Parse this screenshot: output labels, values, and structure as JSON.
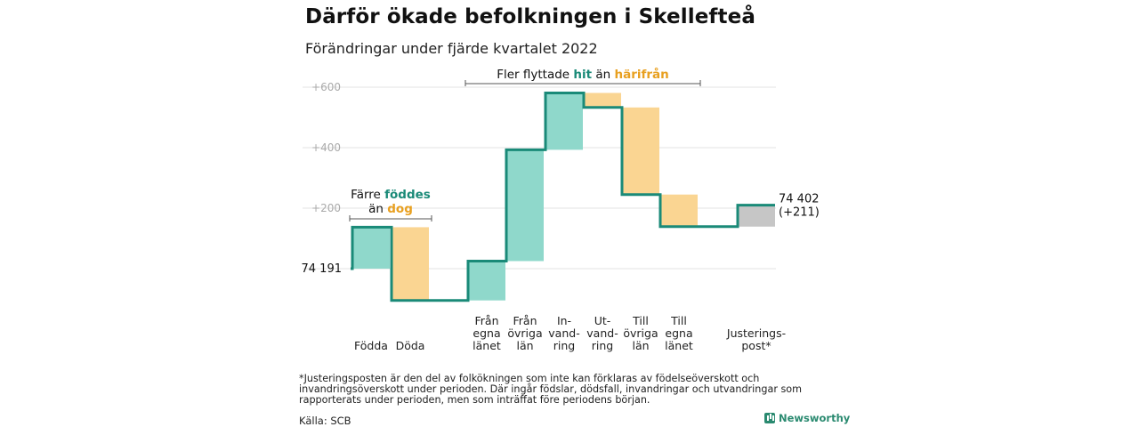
{
  "title": "Därför ökade befolkningen i Skellefteå",
  "subtitle": "Förändringar under fjärde kvartalet 2022",
  "note": "*Justeringsposten är den del av folkökningen som inte kan förklaras av födelseöverskott och invandringsöverskott under perioden. Där ingår födslar, dödsfall, invandringar och utvandringar som rapporterats under perioden, men som inträffat före periodens början.",
  "source": "Källa: SCB",
  "brand": "Newsworthy",
  "chart_data": {
    "type": "bar",
    "subtype": "waterfall",
    "start": {
      "label": "74 191",
      "value": 0
    },
    "end": {
      "label": "74 402",
      "sublabel": "(+211)",
      "value": 211
    },
    "ylim": [
      -120,
      650
    ],
    "yticks": [
      {
        "value": 600,
        "label": "+600"
      },
      {
        "value": 400,
        "label": "+400"
      },
      {
        "value": 200,
        "label": "+200"
      }
    ],
    "grid": true,
    "steps": [
      {
        "category": "Födda",
        "label_lines": [
          "Födda"
        ],
        "delta": 137,
        "kind": "positive"
      },
      {
        "category": "Döda",
        "label_lines": [
          "Döda"
        ],
        "delta": -242,
        "kind": "negative"
      },
      {
        "category": "Från egna länet",
        "label_lines": [
          "Från",
          "egna",
          "länet"
        ],
        "delta": 130,
        "kind": "positive"
      },
      {
        "category": "Från övriga län",
        "label_lines": [
          "Från",
          "övriga",
          "län"
        ],
        "delta": 368,
        "kind": "positive"
      },
      {
        "category": "Invandring",
        "label_lines": [
          "In-",
          "vand-",
          "ring"
        ],
        "delta": 188,
        "kind": "positive"
      },
      {
        "category": "Utvandring",
        "label_lines": [
          "Ut-",
          "vand-",
          "ring"
        ],
        "delta": -48,
        "kind": "negative"
      },
      {
        "category": "Till övriga län",
        "label_lines": [
          "Till",
          "övriga",
          "län"
        ],
        "delta": -288,
        "kind": "negative"
      },
      {
        "category": "Till egna länet",
        "label_lines": [
          "Till",
          "egna",
          "länet"
        ],
        "delta": -106,
        "kind": "negative"
      },
      {
        "category": "Justeringspost*",
        "label_lines": [
          "Justerings-",
          "post*"
        ],
        "delta": 71,
        "kind": "adjustment"
      }
    ],
    "annotations": [
      {
        "id": "births",
        "prefix": "Färre",
        "hl1": "föddes",
        "mid": "än",
        "hl2": "dog"
      },
      {
        "id": "migration",
        "prefix": "Fler flyttade",
        "hl1": "hit",
        "mid": "än",
        "hl2": "härifrån"
      }
    ],
    "colors": {
      "positive": "#8fd8cb",
      "negative": "#fad592",
      "adjustment": "#c6c6c6",
      "line": "#1a8a78",
      "highlight_teal": "#1a8a78",
      "highlight_orange": "#e8a020",
      "grid": "#e3e3e3",
      "tick": "#aaaaaa"
    }
  }
}
